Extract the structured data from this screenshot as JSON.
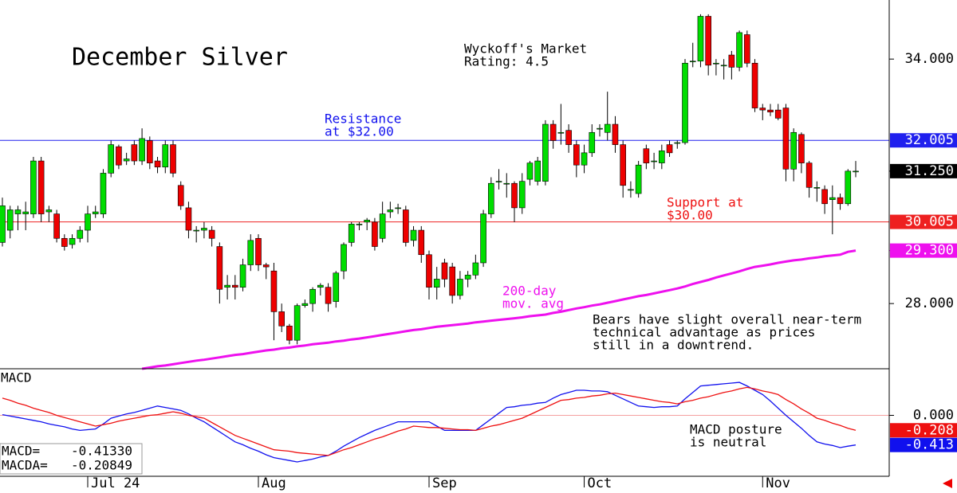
{
  "chart_data": [
    {
      "type": "candlestick",
      "title": "December Silver",
      "annotations": [
        [
          "Wyckoff's Market",
          "Rating: 4.5"
        ],
        [
          "Resistance",
          "at $32.00"
        ],
        [
          "Support at",
          "$30.00"
        ],
        [
          "200-day",
          "mov. avg"
        ],
        [
          "Bears have slight overall near-term",
          "technical advantage as prices",
          "still in a downtrend."
        ]
      ],
      "up_color": "#00dd00",
      "down_color": "#ee0000",
      "ylim": [
        26.4,
        35.45
      ],
      "yticks": [
        {
          "value": 28,
          "label": "28.000"
        },
        {
          "value": 34,
          "label": "34.000"
        }
      ],
      "levels": [
        {
          "value": 32.005,
          "label": "32.005",
          "color": "#2020ee"
        },
        {
          "value": 30.005,
          "label": "30.005",
          "color": "#ee2020"
        }
      ],
      "markers": [
        {
          "value": 31.25,
          "label": "31.250",
          "color": "#000000"
        },
        {
          "value": 29.3,
          "label": "29.300",
          "color": "#ee10ee"
        }
      ],
      "open": [
        29.5,
        29.8,
        30.2,
        30.2,
        30.2,
        31.5,
        30.25,
        30.2,
        29.6,
        29.45,
        29.6,
        29.8,
        30.2,
        30.2,
        31.2,
        31.85,
        31.5,
        31.9,
        31.5,
        32.0,
        31.5,
        31.35,
        31.9,
        30.9,
        30.35,
        29.8,
        29.8,
        29.8,
        29.4,
        28.4,
        28.45,
        28.4,
        28.95,
        29.6,
        28.95,
        28.8,
        27.8,
        27.45,
        27.1,
        27.95,
        28.0,
        28.4,
        28.4,
        28.05,
        28.8,
        29.5,
        29.95,
        30.0,
        30.0,
        29.6,
        30.25,
        30.35,
        30.3,
        29.55,
        29.8,
        29.2,
        28.4,
        29.0,
        28.9,
        28.2,
        28.6,
        28.7,
        29.0,
        30.2,
        31.0,
        30.95,
        30.95,
        30.35,
        31.05,
        31.0,
        31.0,
        32.4,
        32.2,
        32.25,
        31.9,
        31.4,
        31.7,
        32.3,
        32.2,
        32.4,
        31.9,
        30.8,
        30.7,
        31.8,
        31.5,
        31.45,
        31.9,
        31.95,
        31.95,
        33.95,
        33.95,
        35.05,
        33.9,
        33.85,
        34.1,
        33.8,
        34.6,
        33.9,
        32.8,
        32.75,
        32.75,
        32.8,
        31.3,
        32.15,
        31.45,
        30.85,
        30.8,
        30.55,
        30.6,
        30.45,
        31.25
      ],
      "high": [
        30.6,
        30.4,
        30.4,
        30.5,
        31.6,
        31.6,
        30.4,
        30.3,
        29.7,
        29.7,
        29.9,
        30.4,
        30.4,
        31.3,
        32.0,
        31.9,
        31.7,
        32.0,
        32.3,
        32.1,
        31.6,
        32.0,
        32.0,
        31.0,
        30.5,
        29.9,
        30.0,
        29.9,
        29.5,
        28.7,
        28.7,
        29.1,
        29.7,
        29.7,
        29.0,
        29.0,
        28.0,
        27.5,
        28.0,
        28.1,
        28.4,
        28.5,
        28.5,
        28.8,
        29.5,
        30.0,
        30.0,
        30.1,
        30.1,
        30.5,
        30.5,
        30.45,
        30.4,
        29.9,
        29.9,
        29.3,
        28.9,
        29.1,
        29.0,
        28.8,
        28.8,
        29.2,
        30.3,
        31.1,
        31.3,
        31.2,
        31.0,
        31.2,
        31.5,
        31.6,
        32.5,
        32.5,
        32.9,
        32.4,
        32.0,
        31.9,
        32.4,
        32.4,
        33.2,
        32.6,
        32.0,
        31.0,
        31.5,
        31.9,
        31.7,
        31.9,
        32.0,
        32.0,
        34.0,
        34.4,
        35.1,
        35.1,
        34.0,
        34.0,
        34.2,
        34.7,
        34.7,
        34.0,
        32.9,
        32.9,
        32.9,
        32.9,
        32.3,
        32.2,
        31.5,
        31.0,
        30.9,
        30.9,
        30.7,
        31.3,
        31.5
      ],
      "low": [
        29.4,
        29.6,
        29.8,
        29.8,
        30.1,
        30.0,
        30.0,
        29.5,
        29.3,
        29.35,
        29.5,
        29.5,
        30.1,
        30.1,
        31.1,
        31.3,
        31.4,
        31.4,
        31.4,
        31.3,
        31.2,
        31.2,
        31.1,
        30.3,
        29.6,
        29.5,
        29.6,
        29.4,
        28.0,
        28.1,
        28.1,
        28.3,
        28.8,
        28.8,
        28.6,
        27.1,
        27.3,
        27.0,
        27.0,
        27.9,
        27.8,
        28.2,
        27.8,
        27.9,
        28.6,
        29.4,
        29.8,
        29.8,
        29.3,
        29.5,
        30.1,
        30.2,
        29.4,
        29.4,
        29.0,
        28.1,
        28.1,
        28.4,
        28.0,
        28.1,
        28.4,
        28.6,
        28.9,
        30.1,
        30.8,
        30.6,
        30.0,
        30.2,
        30.9,
        30.9,
        30.9,
        31.8,
        31.9,
        31.7,
        31.1,
        31.2,
        31.6,
        32.1,
        32.0,
        31.7,
        30.6,
        30.6,
        30.6,
        31.3,
        31.3,
        31.3,
        31.6,
        31.8,
        31.9,
        33.8,
        33.8,
        33.6,
        33.6,
        33.5,
        33.5,
        33.7,
        33.8,
        32.7,
        32.5,
        32.6,
        32.5,
        31.0,
        31.0,
        31.2,
        30.6,
        30.5,
        30.2,
        29.7,
        30.3,
        30.4,
        31.1
      ],
      "close": [
        30.4,
        30.3,
        30.3,
        30.25,
        31.5,
        30.2,
        30.3,
        29.6,
        29.4,
        29.6,
        29.8,
        30.2,
        30.25,
        31.2,
        31.9,
        31.4,
        31.55,
        31.5,
        32.05,
        31.45,
        31.35,
        31.9,
        31.2,
        30.4,
        29.8,
        29.8,
        29.85,
        29.6,
        28.35,
        28.45,
        28.4,
        28.95,
        29.55,
        28.95,
        28.9,
        27.8,
        27.45,
        27.1,
        27.95,
        28.0,
        28.35,
        28.45,
        28.0,
        28.75,
        29.45,
        29.95,
        29.95,
        30.05,
        29.4,
        30.2,
        30.3,
        30.35,
        29.5,
        29.8,
        29.2,
        28.4,
        28.6,
        28.6,
        28.2,
        28.6,
        28.7,
        29.0,
        30.2,
        30.95,
        31.0,
        30.95,
        30.35,
        31.0,
        31.45,
        31.5,
        32.4,
        32.0,
        32.2,
        31.9,
        31.4,
        31.7,
        32.2,
        32.3,
        32.4,
        31.9,
        30.9,
        30.8,
        31.4,
        31.45,
        31.5,
        31.75,
        31.7,
        31.95,
        33.9,
        33.95,
        35.05,
        33.85,
        33.9,
        33.85,
        33.8,
        34.65,
        33.9,
        32.8,
        32.75,
        32.7,
        32.55,
        31.3,
        32.2,
        31.45,
        30.85,
        30.85,
        30.45,
        30.6,
        30.45,
        31.25,
        31.25
      ],
      "lines": [
        {
          "color": "#ee10ee",
          "values": [
            null,
            null,
            null,
            null,
            null,
            null,
            null,
            null,
            null,
            null,
            null,
            null,
            null,
            null,
            null,
            null,
            null,
            null,
            26.4,
            26.43,
            26.46,
            26.48,
            26.51,
            26.54,
            26.57,
            26.6,
            26.62,
            26.65,
            26.68,
            26.71,
            26.74,
            26.76,
            26.79,
            26.82,
            26.85,
            26.87,
            26.9,
            26.92,
            26.95,
            26.97,
            27.0,
            27.02,
            27.04,
            27.07,
            27.09,
            27.12,
            27.14,
            27.17,
            27.2,
            27.23,
            27.26,
            27.29,
            27.32,
            27.35,
            27.37,
            27.4,
            27.43,
            27.45,
            27.47,
            27.49,
            27.51,
            27.54,
            27.56,
            27.58,
            27.6,
            27.62,
            27.64,
            27.66,
            27.69,
            27.71,
            27.73,
            27.77,
            27.8,
            27.84,
            27.88,
            27.91,
            27.95,
            27.98,
            28.02,
            28.06,
            28.1,
            28.14,
            28.18,
            28.21,
            28.25,
            28.29,
            28.33,
            28.37,
            28.42,
            28.48,
            28.53,
            28.58,
            28.64,
            28.69,
            28.74,
            28.79,
            28.85,
            28.9,
            28.93,
            28.96,
            29.0,
            29.03,
            29.06,
            29.08,
            29.11,
            29.13,
            29.16,
            29.18,
            29.2,
            29.27,
            29.3
          ]
        }
      ]
    },
    {
      "type": "line",
      "title": "MACD",
      "annotations": [
        [
          "MACD posture",
          "is neutral"
        ]
      ],
      "ylim": [
        -0.85,
        0.65
      ],
      "yticks": [
        {
          "value": 0,
          "label": "0.000"
        }
      ],
      "grid": true,
      "categories": [
        null,
        null,
        null,
        null,
        null,
        null,
        null,
        null,
        null,
        null,
        null,
        "Jul 24",
        null,
        null,
        null,
        null,
        null,
        null,
        null,
        null,
        null,
        null,
        null,
        null,
        null,
        null,
        null,
        null,
        null,
        null,
        null,
        null,
        null,
        "Aug",
        null,
        null,
        null,
        null,
        null,
        null,
        null,
        null,
        null,
        null,
        null,
        null,
        null,
        null,
        null,
        null,
        null,
        null,
        null,
        null,
        null,
        "Sep",
        null,
        null,
        null,
        null,
        null,
        null,
        null,
        null,
        null,
        null,
        null,
        null,
        null,
        null,
        null,
        null,
        null,
        null,
        null,
        "Oct",
        null,
        null,
        null,
        null,
        null,
        null,
        null,
        null,
        null,
        null,
        null,
        null,
        null,
        null,
        null,
        null,
        null,
        null,
        null,
        null,
        null,
        null,
        "Nov",
        null,
        null,
        null,
        null,
        null,
        null,
        null,
        null,
        null,
        null,
        null,
        null
      ],
      "series": [
        {
          "name": "MACD=",
          "color": "#1010ee",
          "readout": "-0.41330",
          "end_label": "-0.413",
          "values": [
            0.01,
            -0.01,
            -0.03,
            -0.05,
            -0.07,
            -0.09,
            -0.12,
            -0.14,
            -0.16,
            -0.19,
            -0.21,
            -0.2,
            -0.19,
            -0.12,
            -0.04,
            -0.01,
            0.02,
            0.04,
            0.07,
            0.1,
            0.13,
            0.11,
            0.09,
            0.07,
            0.02,
            -0.04,
            -0.09,
            -0.16,
            -0.23,
            -0.3,
            -0.37,
            -0.41,
            -0.46,
            -0.5,
            -0.55,
            -0.59,
            -0.61,
            -0.63,
            -0.65,
            -0.63,
            -0.61,
            -0.58,
            -0.56,
            -0.5,
            -0.43,
            -0.37,
            -0.31,
            -0.26,
            -0.21,
            -0.17,
            -0.13,
            -0.09,
            -0.09,
            -0.09,
            -0.09,
            -0.09,
            -0.15,
            -0.21,
            -0.21,
            -0.21,
            -0.21,
            -0.21,
            -0.13,
            -0.05,
            0.03,
            0.11,
            0.12,
            0.14,
            0.15,
            0.17,
            0.18,
            0.24,
            0.29,
            0.32,
            0.35,
            0.35,
            0.34,
            0.34,
            0.33,
            0.28,
            0.23,
            0.18,
            0.13,
            0.12,
            0.11,
            0.12,
            0.12,
            0.13,
            0.23,
            0.32,
            0.41,
            0.42,
            0.43,
            0.44,
            0.45,
            0.46,
            0.41,
            0.35,
            0.29,
            0.2,
            0.1,
            0.0,
            -0.09,
            -0.18,
            -0.28,
            -0.37,
            -0.4,
            -0.42,
            -0.45,
            -0.43,
            -0.4133
          ]
        },
        {
          "name": "MACDA=",
          "color": "#ee1010",
          "readout": "-0.20849",
          "end_label": "-0.208",
          "values": [
            0.24,
            0.21,
            0.17,
            0.14,
            0.1,
            0.07,
            0.04,
            0.0,
            -0.03,
            -0.06,
            -0.09,
            -0.12,
            -0.15,
            -0.13,
            -0.11,
            -0.08,
            -0.06,
            -0.04,
            -0.02,
            0.0,
            0.01,
            0.03,
            0.05,
            0.03,
            0.0,
            -0.02,
            -0.04,
            -0.1,
            -0.16,
            -0.22,
            -0.28,
            -0.32,
            -0.36,
            -0.4,
            -0.44,
            -0.48,
            -0.49,
            -0.5,
            -0.52,
            -0.53,
            -0.54,
            -0.55,
            -0.56,
            -0.52,
            -0.48,
            -0.45,
            -0.41,
            -0.37,
            -0.33,
            -0.3,
            -0.26,
            -0.22,
            -0.19,
            -0.15,
            -0.16,
            -0.17,
            -0.17,
            -0.18,
            -0.19,
            -0.2,
            -0.2,
            -0.21,
            -0.18,
            -0.15,
            -0.13,
            -0.1,
            -0.07,
            -0.04,
            0.01,
            0.06,
            0.11,
            0.16,
            0.21,
            0.22,
            0.24,
            0.25,
            0.27,
            0.28,
            0.3,
            0.31,
            0.29,
            0.27,
            0.25,
            0.23,
            0.21,
            0.19,
            0.18,
            0.16,
            0.19,
            0.21,
            0.24,
            0.26,
            0.29,
            0.32,
            0.34,
            0.37,
            0.39,
            0.37,
            0.34,
            0.32,
            0.29,
            0.22,
            0.16,
            0.09,
            0.03,
            -0.04,
            -0.07,
            -0.11,
            -0.14,
            -0.18,
            -0.20849
          ]
        }
      ]
    }
  ]
}
